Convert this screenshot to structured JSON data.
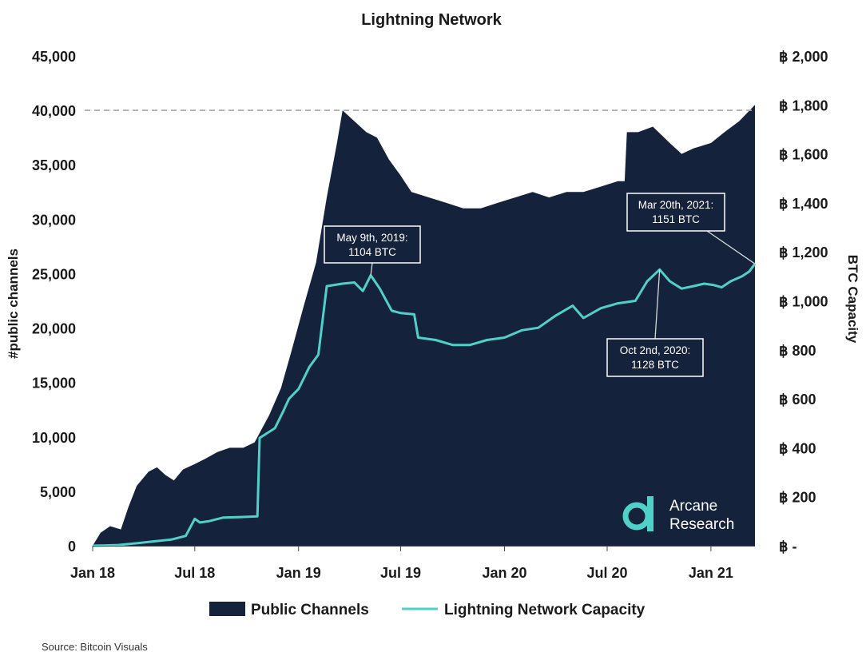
{
  "chart_data": {
    "type": "area",
    "title": "Lightning Network",
    "x_axis": {
      "tick_labels": [
        "Jan 18",
        "Jul 18",
        "Jan 19",
        "Jul 19",
        "Jan 20",
        "Jul 20",
        "Jan 21"
      ],
      "range": [
        "2018-01-01",
        "2021-03-20"
      ]
    },
    "y_left": {
      "label": "#public channels",
      "range": [
        0,
        45000
      ],
      "tick_labels": [
        "0",
        "5,000",
        "10,000",
        "15,000",
        "20,000",
        "25,000",
        "30,000",
        "35,000",
        "40,000",
        "45,000"
      ]
    },
    "y_right": {
      "label": "BTC Capacity",
      "range": [
        0,
        2000
      ],
      "tick_labels": [
        "฿ -",
        "฿ 200",
        "฿ 400",
        "฿ 600",
        "฿ 800",
        "฿ 1,000",
        "฿ 1,200",
        "฿ 1,400",
        "฿ 1,600",
        "฿ 1,800",
        "฿ 2,000"
      ]
    },
    "reference_line": {
      "axis": "left",
      "value": 40000,
      "style": "dashed"
    },
    "series": [
      {
        "name": "Public Channels",
        "kind": "area",
        "axis": "left",
        "color": "#14223b",
        "points": [
          [
            "2018-01-01",
            0
          ],
          [
            "2018-01-15",
            1200
          ],
          [
            "2018-02-01",
            1800
          ],
          [
            "2018-02-20",
            1500
          ],
          [
            "2018-03-05",
            3500
          ],
          [
            "2018-03-20",
            5500
          ],
          [
            "2018-04-10",
            6800
          ],
          [
            "2018-04-25",
            7200
          ],
          [
            "2018-05-10",
            6500
          ],
          [
            "2018-05-25",
            6000
          ],
          [
            "2018-06-10",
            7000
          ],
          [
            "2018-07-01",
            7500
          ],
          [
            "2018-07-20",
            8000
          ],
          [
            "2018-08-10",
            8600
          ],
          [
            "2018-09-01",
            9000
          ],
          [
            "2018-09-25",
            9000
          ],
          [
            "2018-10-15",
            9500
          ],
          [
            "2018-11-10",
            12000
          ],
          [
            "2018-12-01",
            14500
          ],
          [
            "2018-12-20",
            18000
          ],
          [
            "2019-01-10",
            22000
          ],
          [
            "2019-02-01",
            26000
          ],
          [
            "2019-02-20",
            32000
          ],
          [
            "2019-03-10",
            37000
          ],
          [
            "2019-03-20",
            40000
          ],
          [
            "2019-04-10",
            39000
          ],
          [
            "2019-05-01",
            38000
          ],
          [
            "2019-05-20",
            37500
          ],
          [
            "2019-06-10",
            35500
          ],
          [
            "2019-07-01",
            34000
          ],
          [
            "2019-07-20",
            32500
          ],
          [
            "2019-08-20",
            32000
          ],
          [
            "2019-09-20",
            31500
          ],
          [
            "2019-10-20",
            31000
          ],
          [
            "2019-11-20",
            31000
          ],
          [
            "2019-12-20",
            31500
          ],
          [
            "2020-01-20",
            32000
          ],
          [
            "2020-02-20",
            32500
          ],
          [
            "2020-03-20",
            32000
          ],
          [
            "2020-04-20",
            32500
          ],
          [
            "2020-05-20",
            32500
          ],
          [
            "2020-06-20",
            33000
          ],
          [
            "2020-07-20",
            33500
          ],
          [
            "2020-08-01",
            33500
          ],
          [
            "2020-08-05",
            38000
          ],
          [
            "2020-08-25",
            38000
          ],
          [
            "2020-09-20",
            38500
          ],
          [
            "2020-10-20",
            37000
          ],
          [
            "2020-11-10",
            36000
          ],
          [
            "2020-12-01",
            36500
          ],
          [
            "2021-01-01",
            37000
          ],
          [
            "2021-01-25",
            38000
          ],
          [
            "2021-02-20",
            39000
          ],
          [
            "2021-03-20",
            40500
          ]
        ]
      },
      {
        "name": "Lightning Network Capacity",
        "kind": "line",
        "axis": "right",
        "color": "#4fd1c9",
        "points": [
          [
            "2018-01-01",
            0
          ],
          [
            "2018-02-15",
            3
          ],
          [
            "2018-03-20",
            10
          ],
          [
            "2018-04-20",
            18
          ],
          [
            "2018-05-20",
            25
          ],
          [
            "2018-06-15",
            40
          ],
          [
            "2018-07-01",
            110
          ],
          [
            "2018-07-10",
            95
          ],
          [
            "2018-07-25",
            100
          ],
          [
            "2018-08-20",
            115
          ],
          [
            "2018-09-20",
            117
          ],
          [
            "2018-10-20",
            120
          ],
          [
            "2018-10-24",
            440
          ],
          [
            "2018-11-20",
            480
          ],
          [
            "2018-12-05",
            550
          ],
          [
            "2018-12-15",
            600
          ],
          [
            "2019-01-01",
            640
          ],
          [
            "2019-01-20",
            730
          ],
          [
            "2019-02-05",
            780
          ],
          [
            "2019-02-20",
            1060
          ],
          [
            "2019-03-20",
            1070
          ],
          [
            "2019-04-10",
            1075
          ],
          [
            "2019-04-25",
            1040
          ],
          [
            "2019-05-09",
            1104
          ],
          [
            "2019-05-25",
            1050
          ],
          [
            "2019-06-15",
            960
          ],
          [
            "2019-07-01",
            950
          ],
          [
            "2019-07-25",
            945
          ],
          [
            "2019-08-01",
            850
          ],
          [
            "2019-09-01",
            840
          ],
          [
            "2019-10-01",
            820
          ],
          [
            "2019-11-01",
            820
          ],
          [
            "2019-12-01",
            840
          ],
          [
            "2020-01-01",
            850
          ],
          [
            "2020-02-01",
            880
          ],
          [
            "2020-03-01",
            890
          ],
          [
            "2020-04-01",
            940
          ],
          [
            "2020-05-01",
            980
          ],
          [
            "2020-05-20",
            930
          ],
          [
            "2020-06-20",
            970
          ],
          [
            "2020-07-20",
            990
          ],
          [
            "2020-08-20",
            1000
          ],
          [
            "2020-09-10",
            1080
          ],
          [
            "2020-10-02",
            1128
          ],
          [
            "2020-10-20",
            1080
          ],
          [
            "2020-11-10",
            1050
          ],
          [
            "2020-12-01",
            1060
          ],
          [
            "2020-12-20",
            1070
          ],
          [
            "2021-01-05",
            1065
          ],
          [
            "2021-01-20",
            1055
          ],
          [
            "2021-02-05",
            1080
          ],
          [
            "2021-02-25",
            1100
          ],
          [
            "2021-03-10",
            1120
          ],
          [
            "2021-03-20",
            1151
          ]
        ]
      }
    ],
    "annotations": [
      {
        "lines": [
          "May 9th, 2019:",
          "1104 BTC"
        ],
        "point": [
          "2019-05-09",
          1104
        ]
      },
      {
        "lines": [
          "Oct 2nd, 2020:",
          "1128 BTC"
        ],
        "point": [
          "2020-10-02",
          1128
        ]
      },
      {
        "lines": [
          "Mar 20th, 2021:",
          "1151 BTC"
        ],
        "point": [
          "2021-03-20",
          1151
        ]
      }
    ]
  },
  "legend": {
    "items": [
      "Public Channels",
      "Lightning Network Capacity"
    ]
  },
  "brand": {
    "line1": "Arcane",
    "line2": "Research",
    "color": "#4fd1c9"
  },
  "source": "Source:  Bitcoin  Visuals"
}
